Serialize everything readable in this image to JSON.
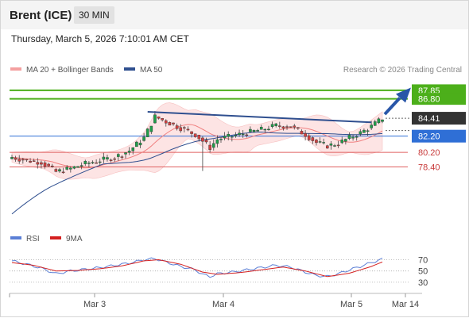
{
  "header": {
    "instrument": "Brent (ICE)",
    "timeframe": "30 MIN",
    "datetime": "Thursday, March 5, 2026 7:10:01 AM CET"
  },
  "legend": {
    "bb_label": "MA 20 + Bollinger Bands",
    "ma50_label": "MA 50",
    "credit": "Research © 2026 Trading Central",
    "rsi_label": "RSI",
    "rsi_ma_label": "9MA"
  },
  "colors": {
    "target": "#4caf1a",
    "resistance": "#2f6fd6",
    "support": "#e06060",
    "bb_fill": "#fde0e0",
    "ma20": "#f08080",
    "ma50": "#2f4f8f",
    "trendline": "#2f4f8f",
    "arrow": "#2956a8",
    "candle_up": "#1e9e4a",
    "candle_down": "#d24040",
    "rsi": "#5b7fd6",
    "rsi_ma": "#d42020",
    "current": "#333333"
  },
  "chart_data": {
    "type": "candlestick",
    "x_ticks": [
      "Mar 3",
      "Mar 4",
      "Mar 5",
      "Mar 14"
    ],
    "ylim": [
      72.0,
      89.6
    ],
    "levels": [
      {
        "name": "target_2",
        "value": 87.85,
        "label": "87.85",
        "style": "target"
      },
      {
        "name": "target_1",
        "value": 86.8,
        "label": "86.80",
        "style": "target"
      },
      {
        "name": "current",
        "value": 84.41,
        "label": "84.41",
        "style": "current"
      },
      {
        "name": "pivot",
        "value": 82.2,
        "label": "82.20",
        "style": "resistance"
      },
      {
        "name": "support_1",
        "value": 80.2,
        "label": "80.20",
        "style": "support"
      },
      {
        "name": "support_2",
        "value": 78.4,
        "label": "78.40",
        "style": "support"
      }
    ],
    "price_anchors": [
      [
        0,
        79.6
      ],
      [
        4,
        79.2
      ],
      [
        8,
        79.0
      ],
      [
        12,
        77.8
      ],
      [
        16,
        78.2
      ],
      [
        20,
        78.8
      ],
      [
        24,
        79.2
      ],
      [
        28,
        79.6
      ],
      [
        32,
        80.4
      ],
      [
        36,
        82.0
      ],
      [
        39,
        84.6
      ],
      [
        42,
        84.0
      ],
      [
        46,
        83.2
      ],
      [
        50,
        82.4
      ],
      [
        52,
        81.6
      ],
      [
        54,
        80.8
      ],
      [
        56,
        81.8
      ],
      [
        60,
        82.2
      ],
      [
        64,
        82.6
      ],
      [
        68,
        83.0
      ],
      [
        72,
        83.5
      ],
      [
        76,
        83.4
      ],
      [
        80,
        82.4
      ],
      [
        83,
        81.4
      ],
      [
        86,
        81.0
      ],
      [
        89,
        81.3
      ],
      [
        92,
        82.0
      ],
      [
        95,
        82.6
      ],
      [
        98,
        83.4
      ],
      [
        101,
        84.4
      ]
    ],
    "rsi": {
      "levels": [
        70,
        50,
        30
      ],
      "ylim": [
        20,
        82
      ],
      "rsi_anchors": [
        [
          0,
          68
        ],
        [
          4,
          62
        ],
        [
          8,
          55
        ],
        [
          12,
          45
        ],
        [
          16,
          50
        ],
        [
          20,
          53
        ],
        [
          24,
          56
        ],
        [
          28,
          60
        ],
        [
          32,
          64
        ],
        [
          36,
          70
        ],
        [
          39,
          72
        ],
        [
          42,
          66
        ],
        [
          46,
          58
        ],
        [
          50,
          52
        ],
        [
          52,
          44
        ],
        [
          54,
          40
        ],
        [
          56,
          45
        ],
        [
          60,
          48
        ],
        [
          64,
          52
        ],
        [
          68,
          56
        ],
        [
          72,
          60
        ],
        [
          76,
          57
        ],
        [
          80,
          48
        ],
        [
          83,
          42
        ],
        [
          86,
          40
        ],
        [
          89,
          45
        ],
        [
          92,
          52
        ],
        [
          95,
          58
        ],
        [
          98,
          65
        ],
        [
          101,
          71
        ]
      ],
      "ma_anchors": [
        [
          0,
          65
        ],
        [
          6,
          60
        ],
        [
          12,
          50
        ],
        [
          18,
          51
        ],
        [
          24,
          54
        ],
        [
          30,
          59
        ],
        [
          36,
          68
        ],
        [
          40,
          70
        ],
        [
          46,
          62
        ],
        [
          52,
          48
        ],
        [
          56,
          44
        ],
        [
          62,
          47
        ],
        [
          68,
          52
        ],
        [
          74,
          57
        ],
        [
          80,
          50
        ],
        [
          86,
          40
        ],
        [
          92,
          46
        ],
        [
          98,
          58
        ],
        [
          101,
          66
        ]
      ]
    }
  }
}
